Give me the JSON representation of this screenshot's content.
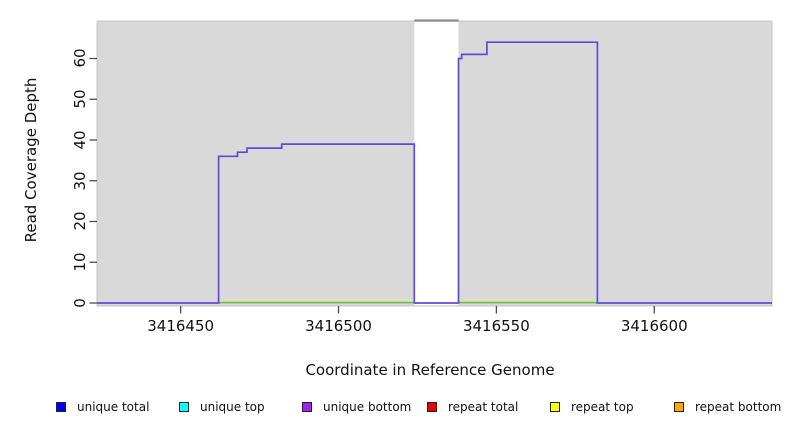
{
  "chart_data": {
    "type": "line",
    "subtype": "step-coverage",
    "title": "",
    "xlabel": "Coordinate in Reference Genome",
    "ylabel": "Read Coverage Depth",
    "xlim": [
      3416423.5,
      3416637.3
    ],
    "ylim": [
      0,
      69.2
    ],
    "x_ticks": [
      3416450,
      3416500,
      3416550,
      3416600
    ],
    "x_tick_labels": [
      "3416450",
      "3416500",
      "3416550",
      "3416600"
    ],
    "y_ticks": [
      0,
      10,
      20,
      30,
      40,
      50,
      60
    ],
    "y_tick_labels": [
      "0",
      "10",
      "20",
      "30",
      "40",
      "50",
      "60"
    ],
    "grid": "off",
    "plot_bg_color": "#d9d9d9",
    "plot_border_color": "#c4c4c4",
    "coverage_line_color": "#6447dd",
    "coverage_steps": [
      {
        "start": 3416462,
        "end": 3416468,
        "depth": 36
      },
      {
        "start": 3416468,
        "end": 3416471,
        "depth": 37
      },
      {
        "start": 3416471,
        "end": 3416482,
        "depth": 38
      },
      {
        "start": 3416482,
        "end": 3416524,
        "depth": 39
      },
      {
        "start": 3416538,
        "end": 3416539,
        "depth": 60
      },
      {
        "start": 3416539,
        "end": 3416547,
        "depth": 61
      },
      {
        "start": 3416547,
        "end": 3416582,
        "depth": 64
      }
    ],
    "masked_region": {
      "start": 3416524,
      "end": 3416538,
      "fill": "#ffffff",
      "top_bar_color": "#8c8c8c"
    },
    "baseline_marks": {
      "start": 3416462,
      "end": 3416582,
      "green_color": "#5abf5c",
      "yellow_color": "#eded86"
    },
    "tick_color": "#4d4d4d",
    "legend_position": "bottom"
  },
  "legend": {
    "items": [
      {
        "label": "unique total",
        "color": "#0000ff"
      },
      {
        "label": "unique top",
        "color": "#00ffff"
      },
      {
        "label": "unique bottom",
        "color": "#a020f0"
      },
      {
        "label": "repeat total",
        "color": "#ee0000"
      },
      {
        "label": "repeat top",
        "color": "#ffff00"
      },
      {
        "label": "repeat bottom",
        "color": "#ffa500"
      }
    ]
  }
}
